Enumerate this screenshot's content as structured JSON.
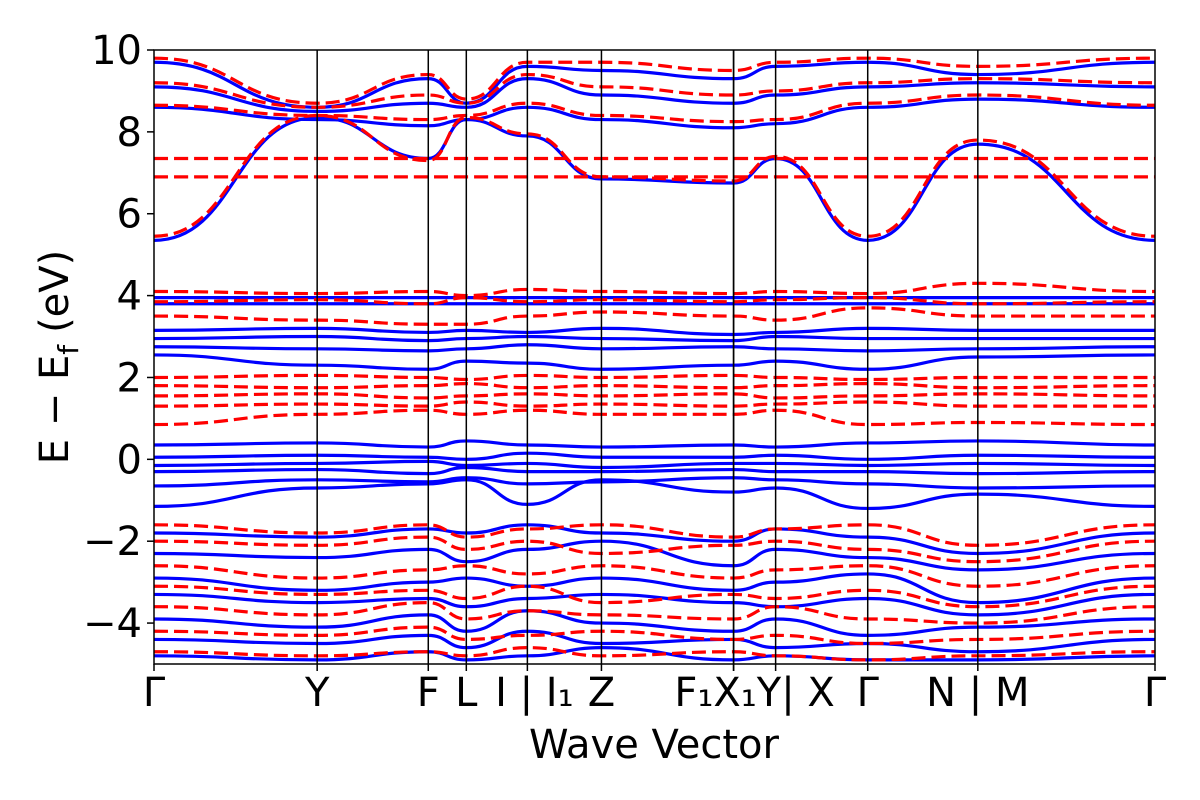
{
  "chart_data": {
    "type": "line",
    "title": "",
    "xlabel": "Wave Vector",
    "ylabel": "E − E",
    "ylabel_subscript": "f",
    "ylabel_unit": "(eV)",
    "ylim": [
      -5,
      10
    ],
    "yticks": [
      -4,
      -2,
      0,
      2,
      4,
      6,
      8,
      10
    ],
    "ytick_labels": [
      "−4",
      "−2",
      "0",
      "2",
      "4",
      "6",
      "8",
      "10"
    ],
    "grid": false,
    "legend": "none",
    "kpath": [
      {
        "label": "Γ",
        "x": 0.0
      },
      {
        "label": "Y",
        "x": 0.163
      },
      {
        "label": "F",
        "x": 0.274
      },
      {
        "label": "L",
        "x": 0.312
      },
      {
        "label": "I | I₁",
        "x": 0.373
      },
      {
        "label": "Z",
        "x": 0.447
      },
      {
        "label": "F₁",
        "x": 0.579
      },
      {
        "label": "X₁",
        "x": 0.579
      },
      {
        "label": "Y | X",
        "x": 0.621
      },
      {
        "label": "Γ",
        "x": 0.713
      },
      {
        "label": "N | M",
        "x": 0.823
      },
      {
        "label": "Γ",
        "x": 1.0
      }
    ],
    "xtick_display": [
      {
        "text": "Γ",
        "x": 0.0
      },
      {
        "text": "Y",
        "x": 0.163
      },
      {
        "text": "F",
        "x": 0.274
      },
      {
        "text": "L",
        "x": 0.312
      },
      {
        "text": "I | I₁",
        "x": 0.38
      },
      {
        "text": "Z",
        "x": 0.447
      },
      {
        "text": "F₁X₁Y| X",
        "x": 0.6
      },
      {
        "text": "Γ",
        "x": 0.713
      },
      {
        "text": "N | M",
        "x": 0.823
      },
      {
        "text": "Γ",
        "x": 1.0
      }
    ],
    "series": [
      {
        "style": "solid",
        "color": "#0000ff",
        "bands": [
          [
            -1.15,
            -0.7,
            -0.6,
            -0.5,
            -1.1,
            -0.5,
            -0.8,
            -0.7,
            -1.2,
            -0.85,
            -1.15
          ],
          [
            -0.65,
            -0.5,
            -0.55,
            -0.45,
            -0.6,
            -0.55,
            -0.45,
            -0.5,
            -0.6,
            -0.7,
            -0.65
          ],
          [
            -0.3,
            -0.25,
            -0.35,
            -0.2,
            -0.3,
            -0.3,
            -0.25,
            -0.3,
            -0.3,
            -0.35,
            -0.3
          ],
          [
            -0.15,
            -0.1,
            -0.05,
            -0.15,
            -0.1,
            -0.2,
            -0.1,
            -0.1,
            -0.15,
            -0.1,
            -0.15
          ],
          [
            0.05,
            0.1,
            0.05,
            0.0,
            0.15,
            0.05,
            0.05,
            0.1,
            0.0,
            0.1,
            0.05
          ],
          [
            0.35,
            0.4,
            0.3,
            0.45,
            0.35,
            0.3,
            0.35,
            0.3,
            0.4,
            0.45,
            0.35
          ],
          [
            2.55,
            2.3,
            2.2,
            2.4,
            2.35,
            2.2,
            2.3,
            2.4,
            2.2,
            2.5,
            2.55
          ],
          [
            2.75,
            2.7,
            2.65,
            2.7,
            2.8,
            2.7,
            2.75,
            2.7,
            2.65,
            2.7,
            2.75
          ],
          [
            2.95,
            3.0,
            2.9,
            2.95,
            3.0,
            2.95,
            2.9,
            3.0,
            2.95,
            2.95,
            2.95
          ],
          [
            3.15,
            3.2,
            3.1,
            3.15,
            3.1,
            3.2,
            3.05,
            3.1,
            3.2,
            3.15,
            3.15
          ],
          [
            3.8,
            3.8,
            3.8,
            3.8,
            3.8,
            3.8,
            3.8,
            3.8,
            3.8,
            3.8,
            3.8
          ],
          [
            3.95,
            3.95,
            3.95,
            3.95,
            3.95,
            3.95,
            3.95,
            3.95,
            3.95,
            3.95,
            3.95
          ],
          [
            5.35,
            8.35,
            7.35,
            8.3,
            7.9,
            6.85,
            6.75,
            7.35,
            5.35,
            7.7,
            5.35
          ],
          [
            8.6,
            8.3,
            8.15,
            8.3,
            8.6,
            8.3,
            8.1,
            8.2,
            8.6,
            8.8,
            8.6
          ],
          [
            9.1,
            8.5,
            8.7,
            8.6,
            9.3,
            8.9,
            8.7,
            8.9,
            9.1,
            9.2,
            9.1
          ],
          [
            9.7,
            8.6,
            9.3,
            8.7,
            9.6,
            9.5,
            9.3,
            9.6,
            9.7,
            9.4,
            9.7
          ],
          [
            -1.8,
            -1.9,
            -1.7,
            -1.8,
            -1.6,
            -1.8,
            -2.0,
            -1.7,
            -1.9,
            -2.3,
            -1.8
          ],
          [
            -2.3,
            -2.4,
            -2.2,
            -2.5,
            -2.2,
            -2.0,
            -2.6,
            -2.2,
            -2.4,
            -2.7,
            -2.3
          ],
          [
            -2.9,
            -3.2,
            -3.0,
            -2.9,
            -3.1,
            -2.9,
            -3.2,
            -3.0,
            -2.8,
            -3.5,
            -2.9
          ],
          [
            -3.3,
            -3.5,
            -3.4,
            -3.6,
            -3.4,
            -3.3,
            -3.5,
            -3.6,
            -3.4,
            -3.8,
            -3.3
          ],
          [
            -3.9,
            -4.1,
            -3.8,
            -4.2,
            -3.7,
            -4.0,
            -4.2,
            -3.9,
            -4.3,
            -4.1,
            -3.9
          ],
          [
            -4.4,
            -4.5,
            -4.3,
            -4.6,
            -4.2,
            -4.5,
            -4.4,
            -4.6,
            -4.5,
            -4.7,
            -4.4
          ],
          [
            -4.8,
            -4.9,
            -4.7,
            -4.9,
            -4.8,
            -4.6,
            -4.9,
            -4.8,
            -4.9,
            -4.9,
            -4.8
          ]
        ]
      },
      {
        "style": "dashed",
        "color": "#ff0000",
        "bands": [
          [
            -1.6,
            -1.8,
            -1.6,
            -1.9,
            -1.7,
            -1.6,
            -1.9,
            -1.7,
            -1.6,
            -2.1,
            -1.6
          ],
          [
            -2.0,
            -2.1,
            -1.9,
            -2.2,
            -2.0,
            -2.3,
            -2.1,
            -2.0,
            -2.2,
            -2.5,
            -2.0
          ],
          [
            -2.6,
            -2.9,
            -2.7,
            -2.6,
            -2.8,
            -2.6,
            -2.9,
            -2.7,
            -2.6,
            -3.1,
            -2.6
          ],
          [
            -3.1,
            -3.3,
            -3.2,
            -3.4,
            -3.1,
            -3.5,
            -3.3,
            -3.4,
            -3.2,
            -3.6,
            -3.1
          ],
          [
            -3.6,
            -3.8,
            -3.5,
            -3.9,
            -3.7,
            -3.8,
            -3.9,
            -3.6,
            -3.9,
            -4.0,
            -3.6
          ],
          [
            -4.2,
            -4.3,
            -4.1,
            -4.4,
            -4.3,
            -4.2,
            -4.4,
            -4.3,
            -4.5,
            -4.4,
            -4.2
          ],
          [
            -4.7,
            -4.8,
            -4.7,
            -4.8,
            -4.6,
            -4.8,
            -4.7,
            -4.8,
            -4.9,
            -4.8,
            -4.7
          ],
          [
            0.85,
            1.1,
            1.2,
            1.1,
            1.2,
            1.1,
            1.1,
            1.2,
            0.85,
            0.9,
            0.85
          ],
          [
            1.3,
            1.35,
            1.3,
            1.4,
            1.3,
            1.35,
            1.3,
            1.35,
            1.4,
            1.3,
            1.3
          ],
          [
            1.55,
            1.6,
            1.5,
            1.55,
            1.6,
            1.55,
            1.6,
            1.5,
            1.55,
            1.6,
            1.55
          ],
          [
            1.8,
            1.75,
            1.8,
            1.85,
            1.75,
            1.8,
            1.75,
            1.8,
            1.85,
            1.75,
            1.8
          ],
          [
            2.0,
            2.05,
            2.0,
            1.95,
            2.05,
            2.0,
            2.05,
            2.0,
            1.95,
            2.0,
            2.0
          ],
          [
            3.5,
            3.4,
            3.3,
            3.3,
            3.5,
            3.6,
            3.5,
            3.4,
            3.7,
            3.5,
            3.5
          ],
          [
            3.85,
            3.9,
            3.8,
            3.95,
            3.85,
            3.9,
            3.85,
            3.9,
            3.95,
            3.8,
            3.85
          ],
          [
            4.1,
            4.05,
            4.1,
            4.0,
            4.15,
            4.1,
            4.05,
            4.1,
            4.05,
            4.3,
            4.1
          ],
          [
            5.45,
            8.4,
            7.3,
            8.35,
            7.95,
            6.9,
            6.8,
            7.4,
            5.45,
            7.8,
            5.45
          ],
          [
            6.9,
            6.9,
            6.9,
            6.9,
            6.9,
            6.9,
            6.9,
            6.9,
            6.9,
            6.9,
            6.9
          ],
          [
            7.35,
            7.35,
            7.35,
            7.35,
            7.35,
            7.35,
            7.35,
            7.35,
            7.35,
            7.35,
            7.35
          ],
          [
            8.65,
            8.4,
            8.3,
            8.4,
            8.7,
            8.4,
            8.25,
            8.3,
            8.7,
            8.9,
            8.65
          ],
          [
            9.2,
            8.6,
            8.9,
            8.7,
            9.4,
            9.1,
            8.9,
            9.0,
            9.2,
            9.3,
            9.2
          ],
          [
            9.8,
            8.7,
            9.4,
            8.8,
            9.7,
            9.7,
            9.5,
            9.7,
            9.8,
            9.6,
            9.8
          ]
        ]
      }
    ]
  }
}
